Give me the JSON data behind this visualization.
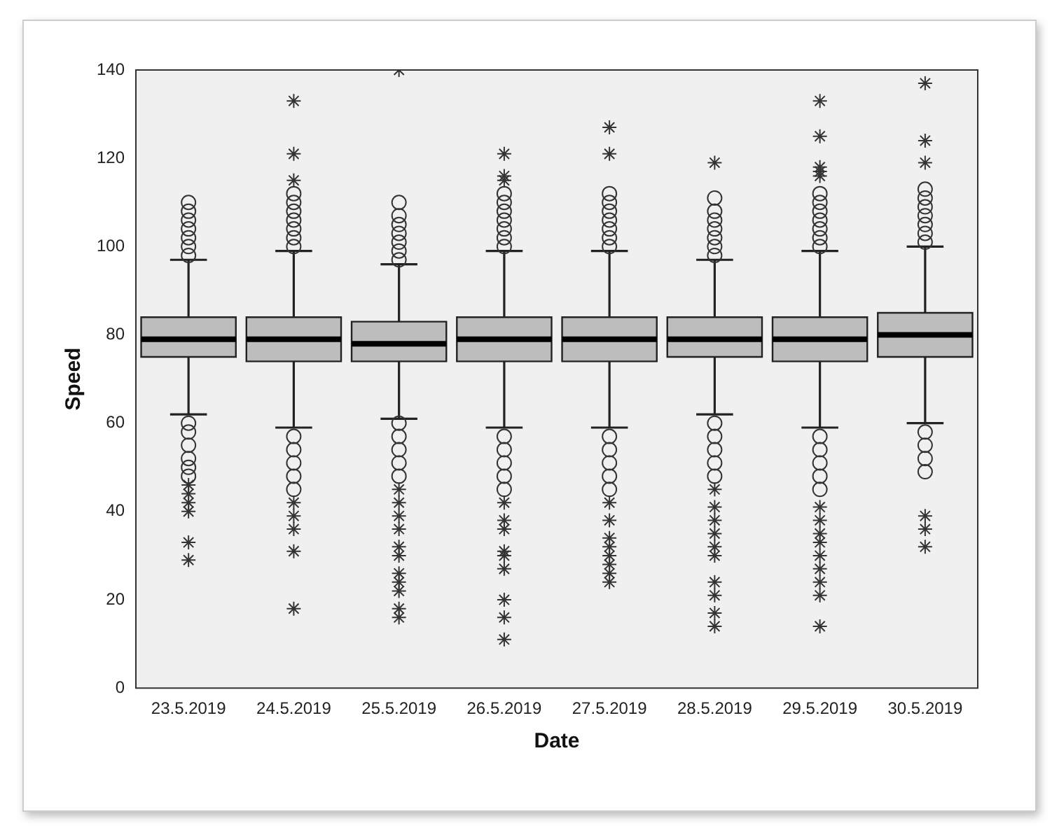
{
  "chart_data": {
    "type": "box",
    "xlabel": "Date",
    "ylabel": "Speed",
    "categories": [
      "23.5.2019",
      "24.5.2019",
      "25.5.2019",
      "26.5.2019",
      "27.5.2019",
      "28.5.2019",
      "29.5.2019",
      "30.5.2019"
    ],
    "ylim": [
      0,
      140
    ],
    "yticks": [
      0,
      20,
      40,
      60,
      80,
      100,
      120,
      140
    ],
    "grid": false,
    "legend": false,
    "boxes": [
      {
        "low": 62,
        "q1": 75,
        "median": 79,
        "q3": 84,
        "high": 97,
        "outliers": [
          98,
          100,
          102,
          104,
          106,
          108,
          110,
          60,
          58,
          55,
          52,
          50,
          48,
          46,
          44,
          42,
          40,
          33,
          29
        ]
      },
      {
        "low": 59,
        "q1": 74,
        "median": 79,
        "q3": 84,
        "high": 99,
        "outliers": [
          100,
          102,
          104,
          106,
          108,
          110,
          112,
          115,
          121,
          133,
          57,
          54,
          51,
          48,
          45,
          42,
          39,
          36,
          31,
          18
        ]
      },
      {
        "low": 61,
        "q1": 74,
        "median": 78,
        "q3": 83,
        "high": 96,
        "outliers": [
          97,
          99,
          101,
          103,
          105,
          107,
          110,
          140,
          60,
          57,
          54,
          51,
          48,
          45,
          42,
          39,
          36,
          32,
          30,
          26,
          24,
          22,
          18,
          16
        ]
      },
      {
        "low": 59,
        "q1": 74,
        "median": 79,
        "q3": 84,
        "high": 99,
        "outliers": [
          100,
          102,
          104,
          106,
          108,
          110,
          112,
          115,
          116,
          121,
          57,
          54,
          51,
          48,
          45,
          42,
          38,
          36,
          31,
          30,
          27,
          20,
          16,
          11
        ]
      },
      {
        "low": 59,
        "q1": 74,
        "median": 79,
        "q3": 84,
        "high": 99,
        "outliers": [
          100,
          102,
          104,
          106,
          108,
          110,
          112,
          121,
          127,
          57,
          54,
          51,
          48,
          45,
          42,
          38,
          34,
          32,
          30,
          28,
          26,
          24
        ]
      },
      {
        "low": 62,
        "q1": 75,
        "median": 79,
        "q3": 84,
        "high": 97,
        "outliers": [
          98,
          100,
          102,
          104,
          106,
          108,
          111,
          119,
          60,
          57,
          54,
          51,
          48,
          45,
          41,
          38,
          35,
          32,
          30,
          24,
          21,
          17,
          14
        ]
      },
      {
        "low": 59,
        "q1": 74,
        "median": 79,
        "q3": 84,
        "high": 99,
        "outliers": [
          100,
          102,
          104,
          106,
          108,
          110,
          112,
          116,
          117,
          118,
          125,
          133,
          57,
          54,
          51,
          48,
          45,
          41,
          38,
          35,
          33,
          30,
          27,
          24,
          21,
          14
        ]
      },
      {
        "low": 60,
        "q1": 75,
        "median": 80,
        "q3": 85,
        "high": 100,
        "outliers": [
          101,
          103,
          105,
          107,
          109,
          111,
          113,
          119,
          124,
          137,
          58,
          55,
          52,
          49,
          39,
          36,
          32
        ]
      }
    ]
  }
}
